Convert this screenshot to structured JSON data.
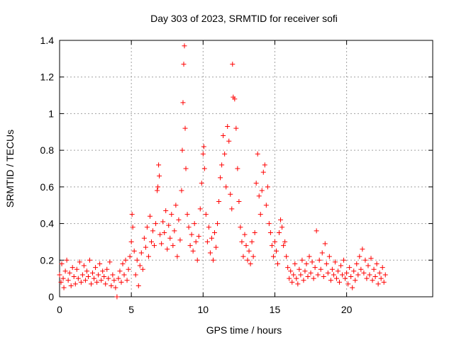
{
  "chart_data": {
    "type": "scatter",
    "title": "Day 303 of 2023, SRMTID for receiver sofi",
    "xlabel": "GPS time / hours",
    "ylabel": "SRMTID / TECUs",
    "xlim": [
      0,
      26
    ],
    "ylim": [
      0,
      1.4
    ],
    "xticks": [
      0,
      5,
      10,
      15,
      20
    ],
    "xtick_labels": [
      "0",
      "5",
      "10",
      "15",
      "20"
    ],
    "yticks": [
      0,
      0.2,
      0.4,
      0.6,
      0.8,
      1.0,
      1.2,
      1.4
    ],
    "ytick_labels": [
      "0",
      "0.2",
      "0.4",
      "0.6",
      "0.8",
      "1",
      "1.2",
      "1.4"
    ],
    "grid": true,
    "marker": "+",
    "color": "#ff0000",
    "series": [
      {
        "name": "SRMTID",
        "points": [
          [
            0.0,
            0.12
          ],
          [
            0.1,
            0.08
          ],
          [
            0.15,
            0.18
          ],
          [
            0.25,
            0.1
          ],
          [
            0.3,
            0.05
          ],
          [
            0.4,
            0.14
          ],
          [
            0.5,
            0.2
          ],
          [
            0.6,
            0.09
          ],
          [
            0.7,
            0.13
          ],
          [
            0.8,
            0.06
          ],
          [
            0.9,
            0.16
          ],
          [
            1.0,
            0.11
          ],
          [
            1.1,
            0.07
          ],
          [
            1.2,
            0.15
          ],
          [
            1.3,
            0.1
          ],
          [
            1.4,
            0.19
          ],
          [
            1.5,
            0.08
          ],
          [
            1.6,
            0.12
          ],
          [
            1.7,
            0.17
          ],
          [
            1.8,
            0.09
          ],
          [
            1.9,
            0.14
          ],
          [
            2.0,
            0.11
          ],
          [
            2.1,
            0.2
          ],
          [
            2.2,
            0.07
          ],
          [
            2.3,
            0.13
          ],
          [
            2.4,
            0.1
          ],
          [
            2.5,
            0.16
          ],
          [
            2.6,
            0.08
          ],
          [
            2.7,
            0.12
          ],
          [
            2.8,
            0.18
          ],
          [
            2.9,
            0.09
          ],
          [
            3.0,
            0.14
          ],
          [
            3.1,
            0.11
          ],
          [
            3.2,
            0.07
          ],
          [
            3.3,
            0.15
          ],
          [
            3.4,
            0.1
          ],
          [
            3.5,
            0.19
          ],
          [
            3.6,
            0.06
          ],
          [
            3.7,
            0.12
          ],
          [
            3.8,
            0.09
          ],
          [
            3.9,
            0.05
          ],
          [
            4.0,
            0.0
          ],
          [
            4.1,
            0.1
          ],
          [
            4.2,
            0.14
          ],
          [
            4.3,
            0.08
          ],
          [
            4.4,
            0.18
          ],
          [
            4.5,
            0.12
          ],
          [
            4.6,
            0.2
          ],
          [
            4.7,
            0.09
          ],
          [
            4.8,
            0.15
          ],
          [
            4.9,
            0.22
          ],
          [
            5.0,
            0.3
          ],
          [
            5.05,
            0.45
          ],
          [
            5.1,
            0.38
          ],
          [
            5.2,
            0.25
          ],
          [
            5.3,
            0.12
          ],
          [
            5.4,
            0.2
          ],
          [
            5.5,
            0.06
          ],
          [
            5.6,
            0.17
          ],
          [
            5.7,
            0.24
          ],
          [
            5.8,
            0.15
          ],
          [
            5.9,
            0.32
          ],
          [
            6.0,
            0.27
          ],
          [
            6.1,
            0.38
          ],
          [
            6.2,
            0.22
          ],
          [
            6.3,
            0.44
          ],
          [
            6.4,
            0.3
          ],
          [
            6.5,
            0.36
          ],
          [
            6.6,
            0.28
          ],
          [
            6.7,
            0.4
          ],
          [
            6.8,
            0.58
          ],
          [
            6.85,
            0.6
          ],
          [
            6.9,
            0.72
          ],
          [
            6.95,
            0.66
          ],
          [
            7.0,
            0.34
          ],
          [
            7.1,
            0.29
          ],
          [
            7.2,
            0.41
          ],
          [
            7.3,
            0.35
          ],
          [
            7.4,
            0.47
          ],
          [
            7.5,
            0.26
          ],
          [
            7.6,
            0.39
          ],
          [
            7.7,
            0.32
          ],
          [
            7.8,
            0.45
          ],
          [
            7.9,
            0.28
          ],
          [
            8.0,
            0.36
          ],
          [
            8.1,
            0.5
          ],
          [
            8.2,
            0.22
          ],
          [
            8.3,
            0.42
          ],
          [
            8.4,
            0.31
          ],
          [
            8.5,
            0.58
          ],
          [
            8.55,
            0.8
          ],
          [
            8.6,
            1.06
          ],
          [
            8.65,
            1.27
          ],
          [
            8.7,
            1.37
          ],
          [
            8.75,
            0.92
          ],
          [
            8.8,
            0.7
          ],
          [
            8.9,
            0.45
          ],
          [
            9.0,
            0.38
          ],
          [
            9.1,
            0.28
          ],
          [
            9.2,
            0.34
          ],
          [
            9.3,
            0.25
          ],
          [
            9.4,
            0.4
          ],
          [
            9.5,
            0.3
          ],
          [
            9.6,
            0.2
          ],
          [
            9.7,
            0.33
          ],
          [
            9.8,
            0.48
          ],
          [
            9.9,
            0.62
          ],
          [
            10.0,
            0.78
          ],
          [
            10.05,
            0.82
          ],
          [
            10.1,
            0.7
          ],
          [
            10.2,
            0.45
          ],
          [
            10.3,
            0.3
          ],
          [
            10.4,
            0.38
          ],
          [
            10.5,
            0.24
          ],
          [
            10.6,
            0.32
          ],
          [
            10.7,
            0.2
          ],
          [
            10.8,
            0.35
          ],
          [
            10.9,
            0.27
          ],
          [
            11.0,
            0.4
          ],
          [
            11.1,
            0.52
          ],
          [
            11.2,
            0.65
          ],
          [
            11.3,
            0.72
          ],
          [
            11.4,
            0.88
          ],
          [
            11.5,
            0.78
          ],
          [
            11.6,
            0.6
          ],
          [
            11.7,
            0.93
          ],
          [
            11.8,
            0.85
          ],
          [
            11.9,
            0.56
          ],
          [
            12.0,
            0.48
          ],
          [
            12.05,
            1.27
          ],
          [
            12.1,
            1.09
          ],
          [
            12.2,
            1.08
          ],
          [
            12.3,
            0.92
          ],
          [
            12.4,
            0.7
          ],
          [
            12.5,
            0.52
          ],
          [
            12.6,
            0.38
          ],
          [
            12.7,
            0.3
          ],
          [
            12.8,
            0.22
          ],
          [
            12.9,
            0.34
          ],
          [
            13.0,
            0.28
          ],
          [
            13.1,
            0.2
          ],
          [
            13.2,
            0.25
          ],
          [
            13.3,
            0.18
          ],
          [
            13.4,
            0.3
          ],
          [
            13.5,
            0.22
          ],
          [
            13.6,
            0.35
          ],
          [
            13.7,
            0.62
          ],
          [
            13.8,
            0.78
          ],
          [
            13.9,
            0.55
          ],
          [
            14.0,
            0.45
          ],
          [
            14.1,
            0.58
          ],
          [
            14.2,
            0.68
          ],
          [
            14.3,
            0.72
          ],
          [
            14.4,
            0.5
          ],
          [
            14.5,
            0.6
          ],
          [
            14.6,
            0.4
          ],
          [
            14.7,
            0.35
          ],
          [
            14.8,
            0.28
          ],
          [
            14.9,
            0.22
          ],
          [
            15.0,
            0.3
          ],
          [
            15.1,
            0.25
          ],
          [
            15.2,
            0.18
          ],
          [
            15.3,
            0.35
          ],
          [
            15.4,
            0.42
          ],
          [
            15.5,
            0.38
          ],
          [
            15.6,
            0.28
          ],
          [
            15.7,
            0.3
          ],
          [
            15.8,
            0.22
          ],
          [
            15.9,
            0.16
          ],
          [
            16.0,
            0.1
          ],
          [
            16.1,
            0.14
          ],
          [
            16.2,
            0.08
          ],
          [
            16.3,
            0.12
          ],
          [
            16.4,
            0.18
          ],
          [
            16.5,
            0.1
          ],
          [
            16.6,
            0.07
          ],
          [
            16.7,
            0.15
          ],
          [
            16.8,
            0.12
          ],
          [
            16.9,
            0.2
          ],
          [
            17.0,
            0.09
          ],
          [
            17.1,
            0.14
          ],
          [
            17.2,
            0.18
          ],
          [
            17.3,
            0.11
          ],
          [
            17.4,
            0.22
          ],
          [
            17.5,
            0.13
          ],
          [
            17.6,
            0.19
          ],
          [
            17.7,
            0.1
          ],
          [
            17.8,
            0.16
          ],
          [
            17.9,
            0.36
          ],
          [
            18.0,
            0.12
          ],
          [
            18.1,
            0.2
          ],
          [
            18.2,
            0.15
          ],
          [
            18.3,
            0.24
          ],
          [
            18.4,
            0.11
          ],
          [
            18.5,
            0.29
          ],
          [
            18.6,
            0.18
          ],
          [
            18.7,
            0.13
          ],
          [
            18.8,
            0.22
          ],
          [
            18.9,
            0.09
          ],
          [
            19.0,
            0.15
          ],
          [
            19.1,
            0.12
          ],
          [
            19.2,
            0.19
          ],
          [
            19.3,
            0.1
          ],
          [
            19.4,
            0.14
          ],
          [
            19.5,
            0.08
          ],
          [
            19.6,
            0.17
          ],
          [
            19.7,
            0.12
          ],
          [
            19.8,
            0.2
          ],
          [
            19.9,
            0.1
          ],
          [
            20.0,
            0.13
          ],
          [
            20.1,
            0.07
          ],
          [
            20.2,
            0.16
          ],
          [
            20.3,
            0.11
          ],
          [
            20.4,
            0.05
          ],
          [
            20.5,
            0.14
          ],
          [
            20.6,
            0.09
          ],
          [
            20.7,
            0.18
          ],
          [
            20.8,
            0.12
          ],
          [
            20.9,
            0.22
          ],
          [
            21.0,
            0.15
          ],
          [
            21.1,
            0.26
          ],
          [
            21.2,
            0.13
          ],
          [
            21.3,
            0.2
          ],
          [
            21.4,
            0.1
          ],
          [
            21.5,
            0.17
          ],
          [
            21.6,
            0.12
          ],
          [
            21.7,
            0.21
          ],
          [
            21.8,
            0.09
          ],
          [
            21.9,
            0.15
          ],
          [
            22.0,
            0.11
          ],
          [
            22.1,
            0.18
          ],
          [
            22.2,
            0.07
          ],
          [
            22.3,
            0.13
          ],
          [
            22.4,
            0.1
          ],
          [
            22.5,
            0.16
          ],
          [
            22.6,
            0.08
          ],
          [
            22.7,
            0.12
          ]
        ]
      }
    ]
  }
}
